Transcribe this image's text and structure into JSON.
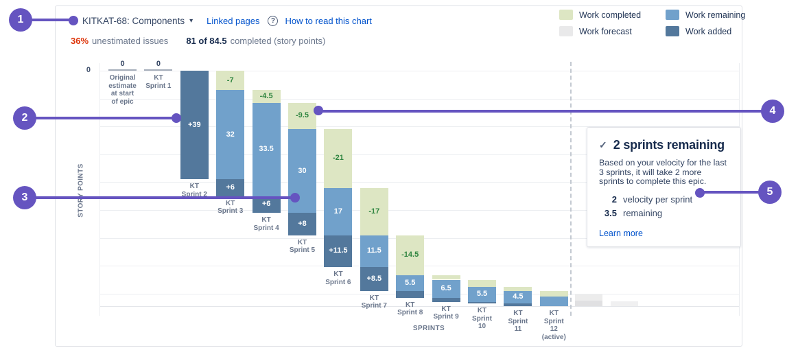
{
  "header": {
    "epic_selector": "KITKAT-68: Components",
    "caret": "▾",
    "linked_pages": "Linked pages",
    "help_icon": "?",
    "how_to_read": "How to read this chart"
  },
  "stats": {
    "unestimated_pct": "36%",
    "unestimated_label": "unestimated issues",
    "completed_value": "81 of 84.5",
    "completed_label": "completed (story points)"
  },
  "legend": {
    "items": [
      {
        "label": "Work completed",
        "color": "#dde6c3"
      },
      {
        "label": "Work remaining",
        "color": "#71a1cb"
      },
      {
        "label": "Work forecast",
        "color": "#e9e9ea"
      },
      {
        "label": "Work added",
        "color": "#53789c"
      }
    ]
  },
  "chart_data": {
    "type": "bar",
    "variant": "epic-burndown-waterfall",
    "ylabel": "STORY POINTS",
    "xlabel": "SPRINTS",
    "y_tick_top": "0",
    "ylim_points": [
      0,
      84.5
    ],
    "gridline_interval_points": 10,
    "columns": [
      {
        "label_lines": [
          "Original",
          "estimate",
          "at start",
          "of epic"
        ],
        "marker_value": "0",
        "completed": 0,
        "remaining": 0,
        "added": 0
      },
      {
        "label_lines": [
          "KT",
          "Sprint 1"
        ],
        "marker_value": "0",
        "completed": 0,
        "remaining": 0,
        "added": 0
      },
      {
        "label_lines": [
          "KT",
          "Sprint 2"
        ],
        "completed": 0,
        "remaining": 0,
        "added": 39,
        "added_label": "+39"
      },
      {
        "label_lines": [
          "KT",
          "Sprint 3"
        ],
        "completed": 7,
        "completed_label": "-7",
        "remaining": 32,
        "remaining_label": "32",
        "added": 6,
        "added_label": "+6"
      },
      {
        "label_lines": [
          "KT",
          "Sprint 4"
        ],
        "completed": 4.5,
        "completed_label": "-4.5",
        "remaining": 33.5,
        "remaining_label": "33.5",
        "added": 6,
        "added_label": "+6"
      },
      {
        "label_lines": [
          "KT",
          "Sprint 5"
        ],
        "completed": 9.5,
        "completed_label": "-9.5",
        "remaining": 30,
        "remaining_label": "30",
        "added": 8,
        "added_label": "+8"
      },
      {
        "label_lines": [
          "KT",
          "Sprint 6"
        ],
        "completed": 21,
        "completed_label": "-21",
        "remaining": 17,
        "remaining_label": "17",
        "added": 11.5,
        "added_label": "+11.5"
      },
      {
        "label_lines": [
          "KT",
          "Sprint 7"
        ],
        "completed": 17,
        "completed_label": "-17",
        "remaining": 11.5,
        "remaining_label": "11.5",
        "added": 8.5,
        "added_label": "+8.5"
      },
      {
        "label_lines": [
          "KT",
          "Sprint 8"
        ],
        "completed": 14.5,
        "completed_label": "-14.5",
        "remaining": 5.5,
        "remaining_label": "5.5",
        "added": 2.5,
        "added_label": ""
      },
      {
        "label_lines": [
          "KT",
          "Sprint 9"
        ],
        "completed": 1.5,
        "completed_label": "",
        "remaining": 6.5,
        "remaining_label": "6.5",
        "added": 1.5,
        "added_label": ""
      },
      {
        "label_lines": [
          "KT",
          "Sprint",
          "10"
        ],
        "completed": 2.5,
        "completed_label": "",
        "remaining": 5.5,
        "remaining_label": "5.5",
        "added": 0.5,
        "added_label": ""
      },
      {
        "label_lines": [
          "KT",
          "Sprint",
          "11"
        ],
        "completed": 1.5,
        "completed_label": "",
        "remaining": 4.5,
        "remaining_label": "4.5",
        "added": 1,
        "added_label": ""
      },
      {
        "label_lines": [
          "KT",
          "Sprint",
          "12",
          "(active)"
        ],
        "completed": 2,
        "completed_label": "",
        "remaining": 3.5,
        "remaining_label": "",
        "added": 0,
        "added_label": ""
      }
    ],
    "forecast_bars": [
      {
        "segments": [
          {
            "from": 80.3,
            "to": 82.6,
            "tone": "light"
          },
          {
            "from": 82.6,
            "to": 84.5,
            "tone": "dark"
          }
        ]
      },
      {
        "segments": [
          {
            "from": 82.7,
            "to": 84.5,
            "tone": "lighter"
          }
        ]
      }
    ],
    "colors": {
      "completed": "#dde6c3",
      "remaining": "#71a1cb",
      "added": "#53789c",
      "forecast_light": "#ececec",
      "forecast_dark": "#e0e0e2",
      "forecast_lighter": "#f0f0f1",
      "completed_text": "#2f8540",
      "segment_text": "#ffffff"
    }
  },
  "panel": {
    "check": "✓",
    "title": "2 sprints remaining",
    "body": "Based on your velocity for the last 3 sprints, it will take 2 more sprints to complete this epic.",
    "stats": [
      {
        "value": "2",
        "label": "velocity per sprint"
      },
      {
        "value": "3.5",
        "label": "remaining"
      }
    ],
    "link": "Learn more"
  },
  "callouts": [
    "1",
    "2",
    "3",
    "4",
    "5"
  ]
}
